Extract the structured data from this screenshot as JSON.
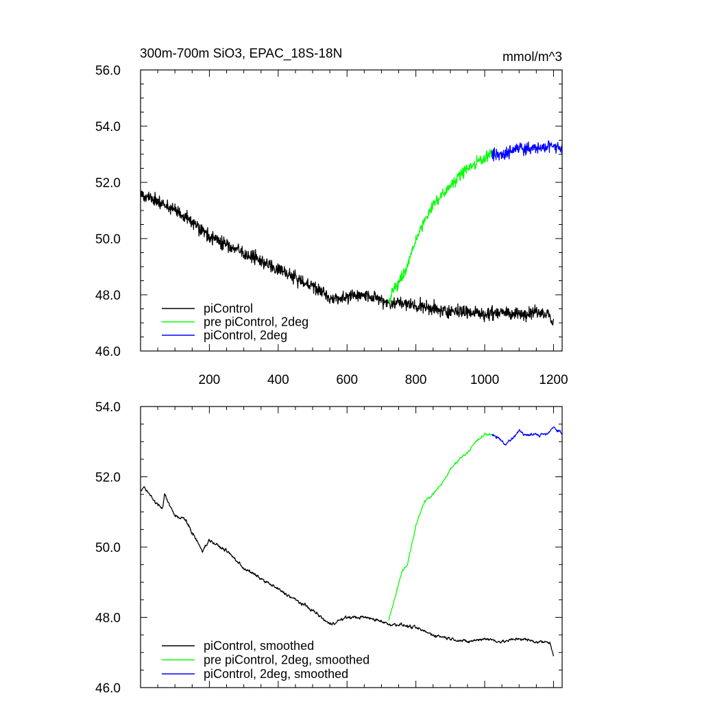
{
  "chart_data": [
    {
      "type": "line",
      "title": "300m-700m SiO3, EPAC_18S-18N",
      "units": "mmol/m^3",
      "xlim": [
        0,
        1225
      ],
      "ylim": [
        46.0,
        56.0
      ],
      "x_ticks": [
        200,
        400,
        600,
        800,
        1000,
        1200
      ],
      "x_tick_labels": [
        "200",
        "400",
        "600",
        "800",
        "1000",
        "1200"
      ],
      "y_ticks": [
        46.0,
        48.0,
        50.0,
        52.0,
        54.0,
        56.0
      ],
      "y_tick_labels": [
        "46.0",
        "48.0",
        "50.0",
        "52.0",
        "54.0",
        "56.0"
      ],
      "legend_placement": "bottom-left",
      "grid": false,
      "series": [
        {
          "name": "piControl",
          "color": "#000000",
          "noise": 0.35,
          "x": [
            1,
            50,
            100,
            150,
            200,
            250,
            300,
            350,
            400,
            450,
            500,
            550,
            600,
            650,
            700,
            720,
            750,
            800,
            850,
            900,
            950,
            1000,
            1050,
            1100,
            1150,
            1185,
            1200
          ],
          "values": [
            51.6,
            51.3,
            51.0,
            50.6,
            50.1,
            49.8,
            49.5,
            49.2,
            48.9,
            48.6,
            48.3,
            47.9,
            47.9,
            48.0,
            47.8,
            47.7,
            47.7,
            47.6,
            47.5,
            47.4,
            47.4,
            47.3,
            47.4,
            47.3,
            47.4,
            47.3,
            47.0
          ]
        },
        {
          "name": "pre piControl, 2deg",
          "color": "#00ff00",
          "noise": 0.3,
          "x": [
            721,
            735,
            750,
            775,
            800,
            850,
            900,
            950,
            1000,
            1020
          ],
          "values": [
            47.8,
            48.2,
            48.4,
            49.0,
            50.0,
            51.2,
            51.9,
            52.5,
            52.9,
            53.0
          ]
        },
        {
          "name": "piControl, 2deg",
          "color": "#0000ff",
          "noise": 0.32,
          "x": [
            1021,
            1050,
            1100,
            1150,
            1200,
            1225
          ],
          "values": [
            53.0,
            53.0,
            53.2,
            53.2,
            53.3,
            53.2
          ]
        }
      ]
    },
    {
      "type": "line",
      "title": "",
      "xlim": [
        0,
        1225
      ],
      "ylim": [
        46.0,
        54.0
      ],
      "x_ticks": [
        200,
        400,
        600,
        800,
        1000,
        1200
      ],
      "y_ticks": [
        46.0,
        48.0,
        50.0,
        52.0,
        54.0
      ],
      "y_tick_labels": [
        "46.0",
        "48.0",
        "50.0",
        "52.0",
        "54.0"
      ],
      "legend_placement": "bottom-left",
      "grid": false,
      "series": [
        {
          "name": "piControl, smoothed",
          "color": "#000000",
          "noise": 0.06,
          "x": [
            1,
            10,
            50,
            65,
            70,
            100,
            130,
            150,
            180,
            200,
            230,
            250,
            280,
            300,
            350,
            400,
            450,
            500,
            550,
            600,
            650,
            700,
            720,
            750,
            800,
            850,
            900,
            950,
            1000,
            1050,
            1100,
            1150,
            1190,
            1200
          ],
          "values": [
            51.6,
            51.7,
            51.2,
            51.1,
            51.5,
            50.9,
            50.8,
            50.4,
            49.9,
            50.2,
            50.0,
            49.9,
            49.6,
            49.4,
            49.1,
            48.8,
            48.5,
            48.2,
            47.8,
            48.0,
            48.0,
            47.9,
            47.8,
            47.8,
            47.7,
            47.5,
            47.4,
            47.3,
            47.4,
            47.3,
            47.4,
            47.3,
            47.3,
            46.9
          ]
        },
        {
          "name": "pre piControl, 2deg, smoothed",
          "color": "#00ff00",
          "noise": 0.05,
          "x": [
            721,
            740,
            760,
            775,
            800,
            825,
            850,
            875,
            900,
            925,
            950,
            975,
            1000,
            1020
          ],
          "values": [
            47.9,
            48.6,
            49.3,
            49.5,
            50.6,
            51.3,
            51.5,
            51.8,
            52.2,
            52.5,
            52.7,
            53.0,
            53.2,
            53.2
          ]
        },
        {
          "name": "piControl, 2deg, smoothed",
          "color": "#0000ff",
          "noise": 0.06,
          "x": [
            1021,
            1040,
            1060,
            1080,
            1100,
            1120,
            1140,
            1160,
            1180,
            1200,
            1215,
            1225
          ],
          "values": [
            53.2,
            53.1,
            52.9,
            53.1,
            53.3,
            53.2,
            53.2,
            53.2,
            53.2,
            53.4,
            53.3,
            53.2
          ]
        }
      ]
    }
  ]
}
